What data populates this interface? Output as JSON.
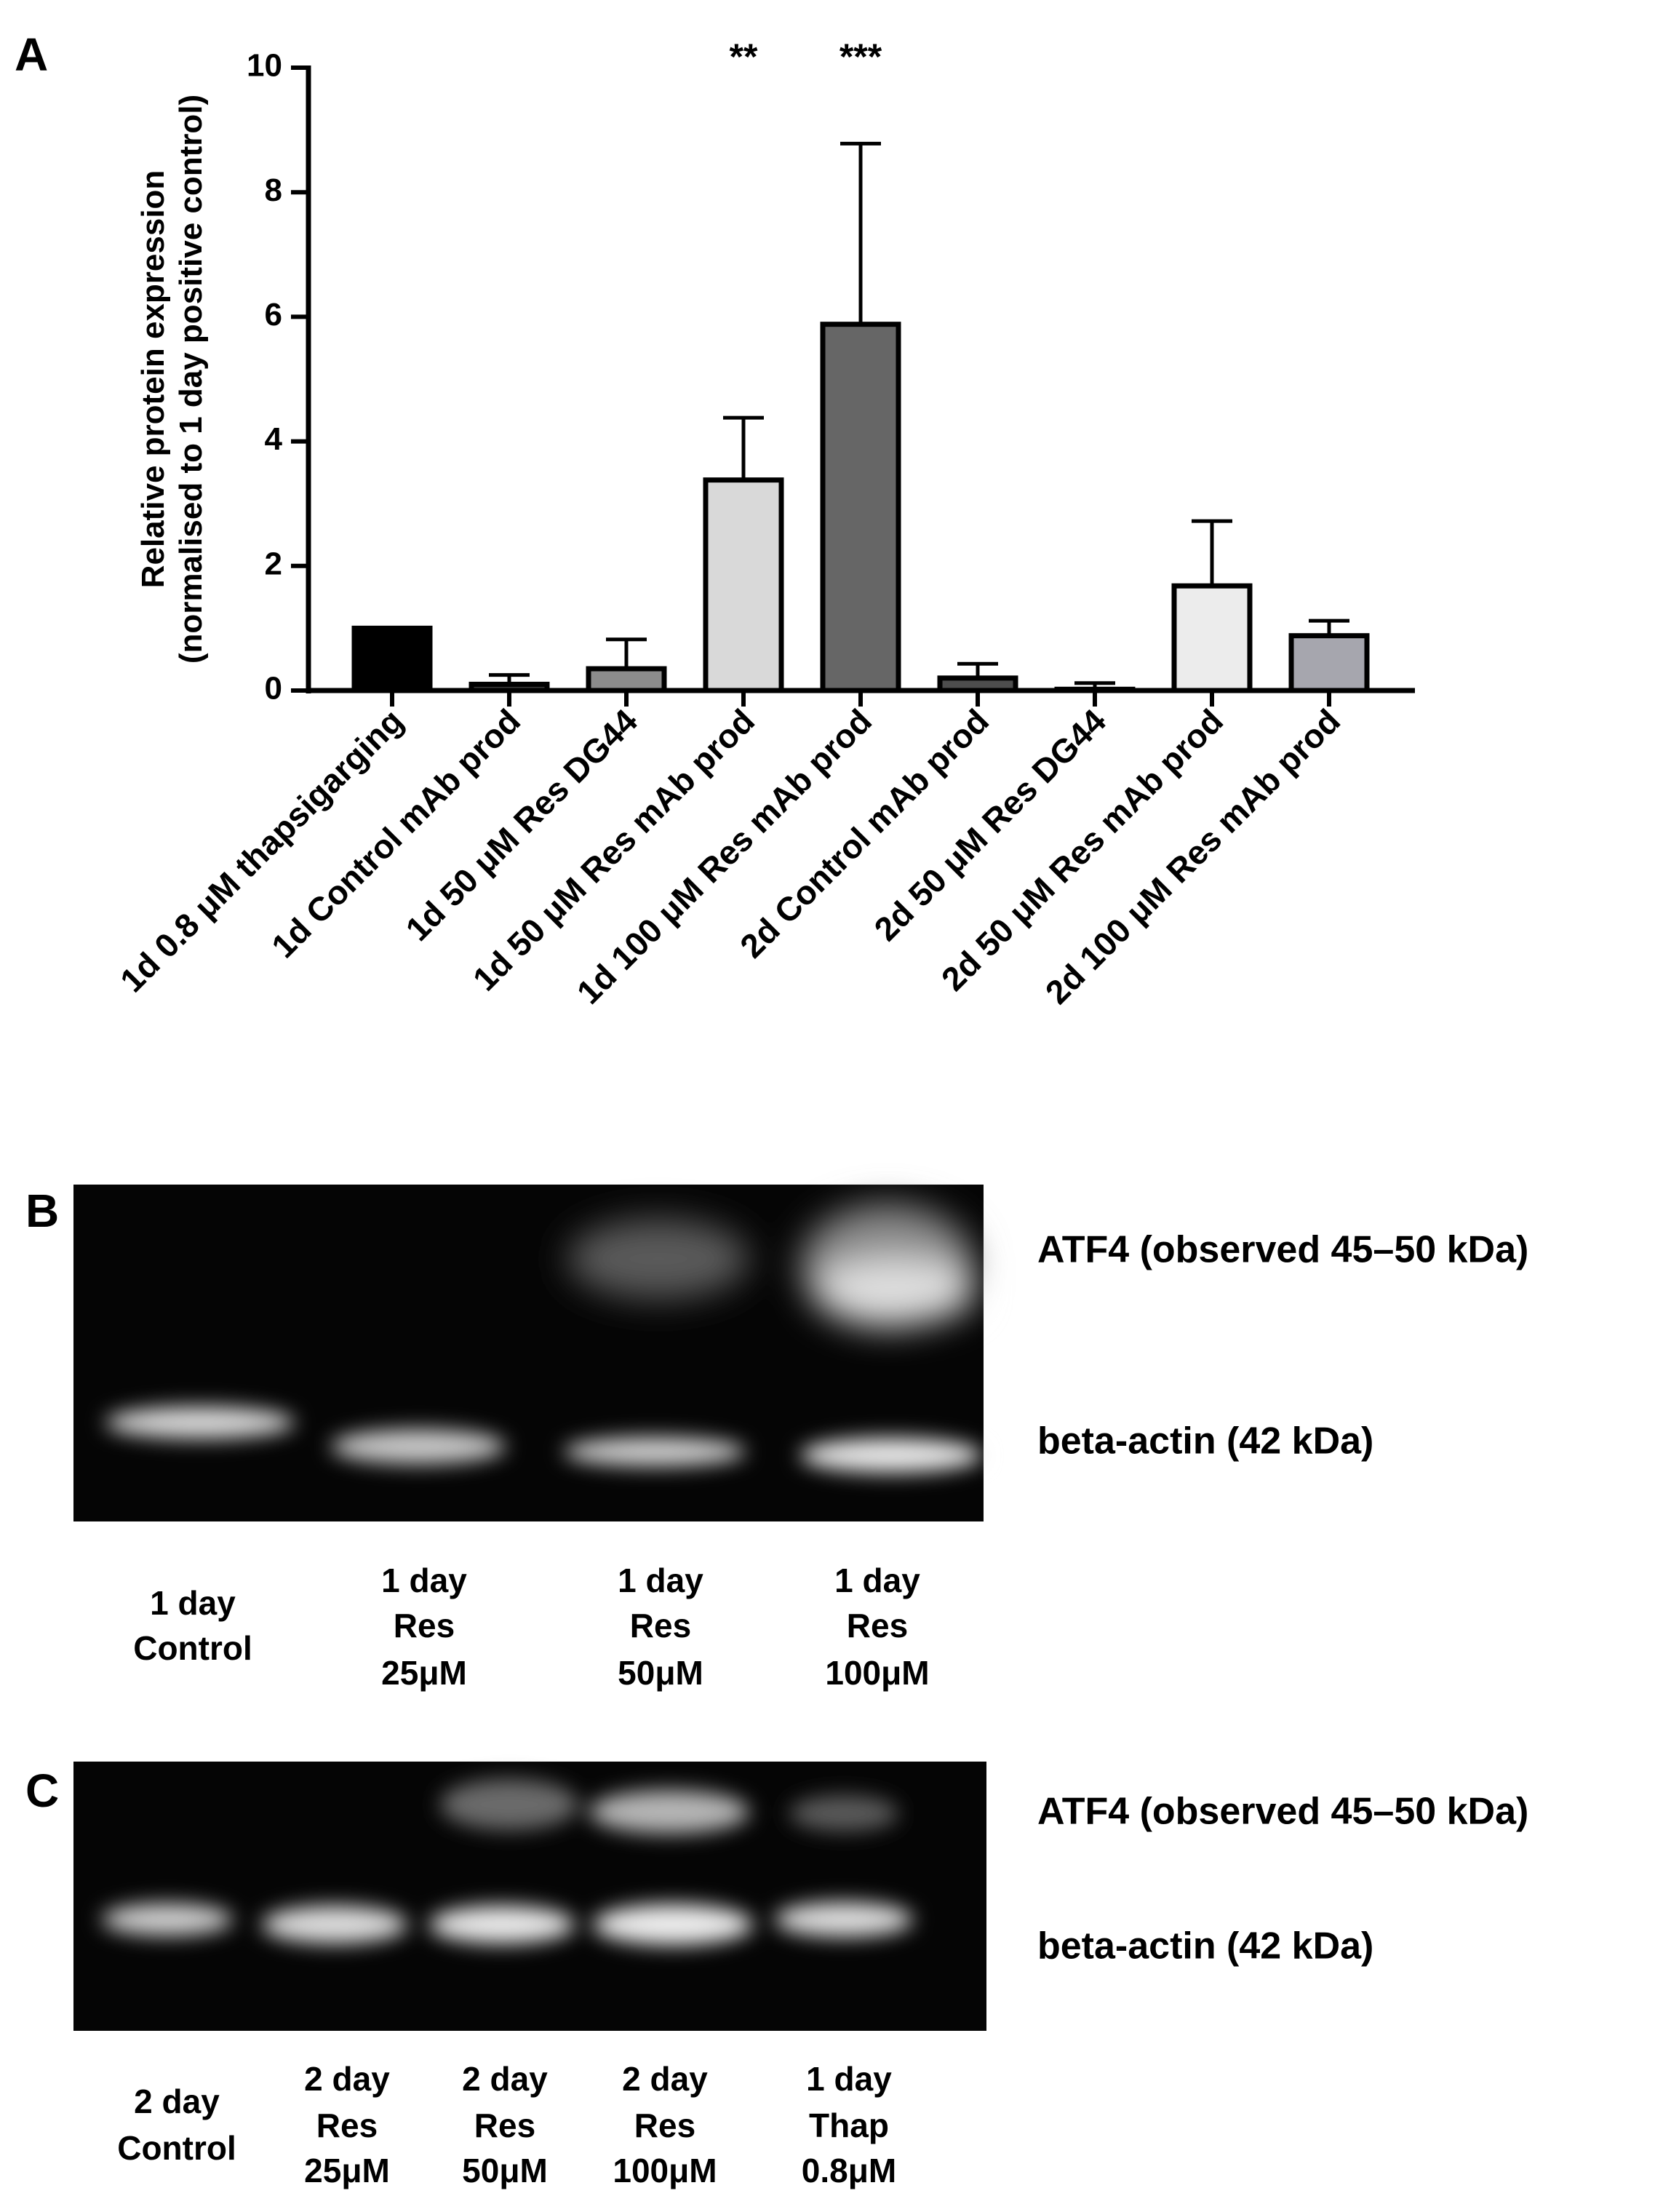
{
  "chart_data": {
    "type": "bar",
    "panel_label": "A",
    "ylabel": [
      "Relative protein expression",
      "(normalised to 1 day positive control)"
    ],
    "categories": [
      "1d 0.8 μM thapsigarging",
      "1d Control mAb prod",
      "1d 50 μM Res DG44",
      "1d 50 μM Res mAb prod",
      "1d 100 μM Res mAb prod",
      "2d Control mAb prod",
      "2d 50 μM Res DG44",
      "2d 50 μM Res mAb prod",
      "2d 100 μM Res mAb prod"
    ],
    "values": [
      1.0,
      0.1,
      0.35,
      3.38,
      5.88,
      0.2,
      0.02,
      1.68,
      0.88
    ],
    "errors": [
      null,
      0.15,
      0.47,
      1.0,
      2.9,
      0.23,
      0.1,
      1.04,
      0.24
    ],
    "colors": [
      "#000000",
      "#3a3a3a",
      "#8c8c8c",
      "#d9d9d9",
      "#666666",
      "#4d4d4d",
      "#333333",
      "#ececec",
      "#a6a6ae"
    ],
    "annotations": [
      "**",
      "***"
    ],
    "ylim": [
      0,
      10
    ],
    "yticks": [
      0,
      2,
      4,
      6,
      8,
      10
    ]
  },
  "blots": [
    {
      "panel_label": "B",
      "bands": [
        "ATF4 (observed 45–50 kDa)",
        "beta-actin (42 kDa)"
      ],
      "lanes": [
        [
          "1 day",
          "Control"
        ],
        [
          "1 day",
          "Res",
          "25μM"
        ],
        [
          "1 day",
          "Res",
          "50μM"
        ],
        [
          "1 day",
          "Res",
          "100μM"
        ]
      ]
    },
    {
      "panel_label": "C",
      "bands": [
        "ATF4 (observed 45–50 kDa)",
        "beta-actin (42 kDa)"
      ],
      "lanes": [
        [
          "2 day",
          "Control"
        ],
        [
          "2 day",
          "Res",
          "25μM"
        ],
        [
          "2 day",
          "Res",
          "50μM"
        ],
        [
          "2 day",
          "Res",
          "100μM"
        ],
        [
          "1 day",
          "Thap",
          "0.8μM"
        ]
      ]
    }
  ]
}
